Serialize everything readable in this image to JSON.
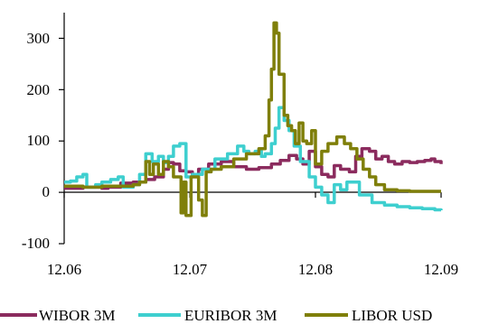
{
  "chart_data": {
    "type": "line",
    "title": "",
    "xlabel": "",
    "ylabel": "",
    "x_ticks": [
      "12.06",
      "12.07",
      "12.08",
      "12.09"
    ],
    "x_tick_values": [
      2006.95,
      2007.95,
      2008.95,
      2009.95
    ],
    "xlim": [
      2006.95,
      2009.95
    ],
    "y_ticks": [
      "-100",
      "0",
      "100",
      "200",
      "300"
    ],
    "y_tick_values": [
      -100,
      0,
      100,
      200,
      300
    ],
    "ylim": [
      -100,
      350
    ],
    "grid": false,
    "legend_position": "bottom",
    "series": [
      {
        "name": "WIBOR 3M",
        "color": "#8b2b5e",
        "points": [
          [
            2006.95,
            8
          ],
          [
            2007.1,
            10
          ],
          [
            2007.25,
            8
          ],
          [
            2007.3,
            10
          ],
          [
            2007.4,
            18
          ],
          [
            2007.5,
            20
          ],
          [
            2007.6,
            25
          ],
          [
            2007.67,
            30
          ],
          [
            2007.74,
            45
          ],
          [
            2007.78,
            58
          ],
          [
            2007.82,
            55
          ],
          [
            2007.87,
            42
          ],
          [
            2007.92,
            40
          ],
          [
            2007.97,
            35
          ],
          [
            2008.02,
            45
          ],
          [
            2008.1,
            55
          ],
          [
            2008.2,
            60
          ],
          [
            2008.3,
            50
          ],
          [
            2008.4,
            45
          ],
          [
            2008.5,
            48
          ],
          [
            2008.6,
            55
          ],
          [
            2008.67,
            62
          ],
          [
            2008.74,
            72
          ],
          [
            2008.8,
            65
          ],
          [
            2008.85,
            55
          ],
          [
            2008.9,
            80
          ],
          [
            2008.95,
            50
          ],
          [
            2009.0,
            35
          ],
          [
            2009.05,
            30
          ],
          [
            2009.1,
            52
          ],
          [
            2009.15,
            45
          ],
          [
            2009.22,
            40
          ],
          [
            2009.27,
            70
          ],
          [
            2009.32,
            85
          ],
          [
            2009.38,
            80
          ],
          [
            2009.43,
            65
          ],
          [
            2009.48,
            70
          ],
          [
            2009.53,
            60
          ],
          [
            2009.58,
            55
          ],
          [
            2009.64,
            60
          ],
          [
            2009.7,
            58
          ],
          [
            2009.76,
            60
          ],
          [
            2009.82,
            62
          ],
          [
            2009.87,
            65
          ],
          [
            2009.9,
            60
          ],
          [
            2009.95,
            55
          ]
        ]
      },
      {
        "name": "EURIBOR 3M",
        "color": "#3ecfcf",
        "points": [
          [
            2006.95,
            20
          ],
          [
            2007.0,
            22
          ],
          [
            2007.05,
            30
          ],
          [
            2007.1,
            35
          ],
          [
            2007.13,
            10
          ],
          [
            2007.2,
            15
          ],
          [
            2007.25,
            20
          ],
          [
            2007.32,
            25
          ],
          [
            2007.38,
            30
          ],
          [
            2007.42,
            10
          ],
          [
            2007.5,
            15
          ],
          [
            2007.55,
            35
          ],
          [
            2007.6,
            75
          ],
          [
            2007.65,
            60
          ],
          [
            2007.7,
            70
          ],
          [
            2007.74,
            58
          ],
          [
            2007.78,
            70
          ],
          [
            2007.82,
            90
          ],
          [
            2007.87,
            95
          ],
          [
            2007.92,
            30
          ],
          [
            2007.97,
            35
          ],
          [
            2008.05,
            45
          ],
          [
            2008.15,
            65
          ],
          [
            2008.25,
            75
          ],
          [
            2008.33,
            90
          ],
          [
            2008.38,
            80
          ],
          [
            2008.42,
            75
          ],
          [
            2008.47,
            80
          ],
          [
            2008.52,
            70
          ],
          [
            2008.55,
            75
          ],
          [
            2008.6,
            95
          ],
          [
            2008.63,
            125
          ],
          [
            2008.66,
            165
          ],
          [
            2008.7,
            140
          ],
          [
            2008.74,
            120
          ],
          [
            2008.78,
            90
          ],
          [
            2008.83,
            60
          ],
          [
            2008.9,
            30
          ],
          [
            2008.95,
            10
          ],
          [
            2009.0,
            -5
          ],
          [
            2009.05,
            -20
          ],
          [
            2009.1,
            15
          ],
          [
            2009.15,
            5
          ],
          [
            2009.2,
            20
          ],
          [
            2009.3,
            -5
          ],
          [
            2009.4,
            -20
          ],
          [
            2009.5,
            -25
          ],
          [
            2009.6,
            -28
          ],
          [
            2009.7,
            -30
          ],
          [
            2009.8,
            -32
          ],
          [
            2009.9,
            -34
          ],
          [
            2009.95,
            -35
          ]
        ]
      },
      {
        "name": "LIBOR USD",
        "color": "#7f7f0a",
        "points": [
          [
            2006.95,
            12
          ],
          [
            2007.1,
            10
          ],
          [
            2007.25,
            12
          ],
          [
            2007.4,
            12
          ],
          [
            2007.5,
            15
          ],
          [
            2007.55,
            20
          ],
          [
            2007.6,
            60
          ],
          [
            2007.63,
            35
          ],
          [
            2007.66,
            55
          ],
          [
            2007.7,
            35
          ],
          [
            2007.74,
            60
          ],
          [
            2007.78,
            50
          ],
          [
            2007.82,
            30
          ],
          [
            2007.86,
            30
          ],
          [
            2007.88,
            -40
          ],
          [
            2007.9,
            20
          ],
          [
            2007.92,
            -45
          ],
          [
            2007.96,
            30
          ],
          [
            2007.99,
            30
          ],
          [
            2008.02,
            -15
          ],
          [
            2008.05,
            -45
          ],
          [
            2008.08,
            40
          ],
          [
            2008.12,
            45
          ],
          [
            2008.2,
            50
          ],
          [
            2008.3,
            65
          ],
          [
            2008.4,
            75
          ],
          [
            2008.5,
            85
          ],
          [
            2008.55,
            110
          ],
          [
            2008.58,
            180
          ],
          [
            2008.6,
            240
          ],
          [
            2008.62,
            330
          ],
          [
            2008.64,
            310
          ],
          [
            2008.66,
            230
          ],
          [
            2008.7,
            150
          ],
          [
            2008.73,
            130
          ],
          [
            2008.76,
            120
          ],
          [
            2008.79,
            95
          ],
          [
            2008.82,
            135
          ],
          [
            2008.85,
            100
          ],
          [
            2008.88,
            95
          ],
          [
            2008.92,
            120
          ],
          [
            2008.95,
            55
          ],
          [
            2009.0,
            80
          ],
          [
            2009.05,
            95
          ],
          [
            2009.12,
            108
          ],
          [
            2009.18,
            95
          ],
          [
            2009.23,
            85
          ],
          [
            2009.28,
            65
          ],
          [
            2009.33,
            45
          ],
          [
            2009.38,
            30
          ],
          [
            2009.43,
            15
          ],
          [
            2009.5,
            5
          ],
          [
            2009.6,
            3
          ],
          [
            2009.7,
            2
          ],
          [
            2009.8,
            2
          ],
          [
            2009.9,
            2
          ],
          [
            2009.95,
            2
          ]
        ]
      }
    ]
  }
}
